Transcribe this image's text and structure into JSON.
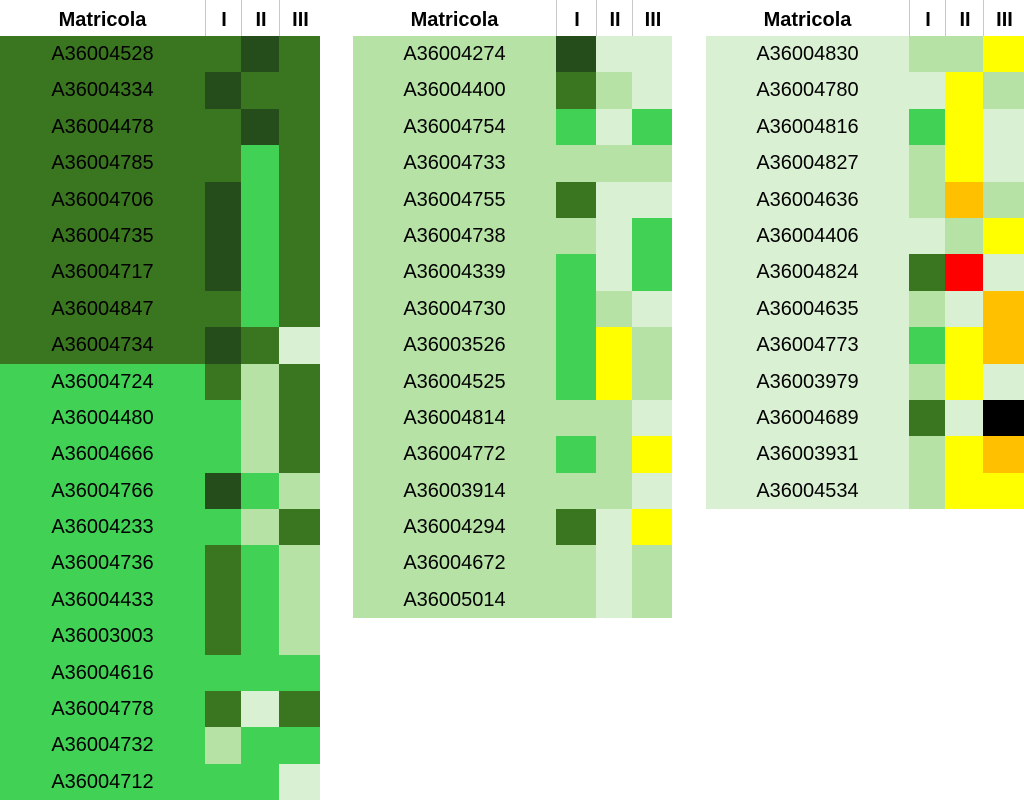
{
  "colors": {
    "D": "#254c1b",
    "M": "#3a7520",
    "G": "#41d155",
    "L": "#b6e3a5",
    "P": "#daf0d3",
    "Y": "#ffff00",
    "O": "#ffc000",
    "R": "#ff0000",
    "K": "#000000"
  },
  "legend_codes": {
    "D": "dark green",
    "M": "medium green",
    "G": "bright green",
    "L": "light green",
    "P": "pale green",
    "Y": "yellow",
    "O": "orange",
    "R": "red",
    "K": "black"
  },
  "tables": [
    {
      "headers": {
        "id": "Matricola",
        "c1": "I",
        "c2": "II",
        "c3": "III"
      },
      "rows": [
        {
          "id": "A36004528",
          "bg": "M",
          "c": [
            "M",
            "D",
            "M"
          ]
        },
        {
          "id": "A36004334",
          "bg": "M",
          "c": [
            "D",
            "M",
            "M"
          ]
        },
        {
          "id": "A36004478",
          "bg": "M",
          "c": [
            "M",
            "D",
            "M"
          ]
        },
        {
          "id": "A36004785",
          "bg": "M",
          "c": [
            "M",
            "G",
            "M"
          ]
        },
        {
          "id": "A36004706",
          "bg": "M",
          "c": [
            "D",
            "G",
            "M"
          ]
        },
        {
          "id": "A36004735",
          "bg": "M",
          "c": [
            "D",
            "G",
            "M"
          ]
        },
        {
          "id": "A36004717",
          "bg": "M",
          "c": [
            "D",
            "G",
            "M"
          ]
        },
        {
          "id": "A36004847",
          "bg": "M",
          "c": [
            "M",
            "G",
            "M"
          ]
        },
        {
          "id": "A36004734",
          "bg": "M",
          "c": [
            "D",
            "M",
            "P"
          ]
        },
        {
          "id": "A36004724",
          "bg": "G",
          "c": [
            "M",
            "L",
            "M"
          ]
        },
        {
          "id": "A36004480",
          "bg": "G",
          "c": [
            "G",
            "L",
            "M"
          ]
        },
        {
          "id": "A36004666",
          "bg": "G",
          "c": [
            "G",
            "L",
            "M"
          ]
        },
        {
          "id": "A36004766",
          "bg": "G",
          "c": [
            "D",
            "G",
            "L"
          ]
        },
        {
          "id": "A36004233",
          "bg": "G",
          "c": [
            "G",
            "L",
            "M"
          ]
        },
        {
          "id": "A36004736",
          "bg": "G",
          "c": [
            "M",
            "G",
            "L"
          ]
        },
        {
          "id": "A36004433",
          "bg": "G",
          "c": [
            "M",
            "G",
            "L"
          ]
        },
        {
          "id": "A36003003",
          "bg": "G",
          "c": [
            "M",
            "G",
            "L"
          ]
        },
        {
          "id": "A36004616",
          "bg": "G",
          "c": [
            "G",
            "G",
            "G"
          ]
        },
        {
          "id": "A36004778",
          "bg": "G",
          "c": [
            "M",
            "P",
            "M"
          ]
        },
        {
          "id": "A36004732",
          "bg": "G",
          "c": [
            "L",
            "G",
            "G"
          ]
        },
        {
          "id": "A36004712",
          "bg": "G",
          "c": [
            "G",
            "G",
            "P"
          ]
        }
      ]
    },
    {
      "headers": {
        "id": "Matricola",
        "c1": "I",
        "c2": "II",
        "c3": "III"
      },
      "rows": [
        {
          "id": "A36004274",
          "bg": "L",
          "c": [
            "D",
            "P",
            "P"
          ]
        },
        {
          "id": "A36004400",
          "bg": "L",
          "c": [
            "M",
            "L",
            "P"
          ]
        },
        {
          "id": "A36004754",
          "bg": "L",
          "c": [
            "G",
            "P",
            "G"
          ]
        },
        {
          "id": "A36004733",
          "bg": "L",
          "c": [
            "L",
            "L",
            "L"
          ]
        },
        {
          "id": "A36004755",
          "bg": "L",
          "c": [
            "M",
            "P",
            "P"
          ]
        },
        {
          "id": "A36004738",
          "bg": "L",
          "c": [
            "L",
            "P",
            "G"
          ]
        },
        {
          "id": "A36004339",
          "bg": "L",
          "c": [
            "G",
            "P",
            "G"
          ]
        },
        {
          "id": "A36004730",
          "bg": "L",
          "c": [
            "G",
            "L",
            "P"
          ]
        },
        {
          "id": "A36003526",
          "bg": "L",
          "c": [
            "G",
            "Y",
            "L"
          ]
        },
        {
          "id": "A36004525",
          "bg": "L",
          "c": [
            "G",
            "Y",
            "L"
          ]
        },
        {
          "id": "A36004814",
          "bg": "L",
          "c": [
            "L",
            "L",
            "P"
          ]
        },
        {
          "id": "A36004772",
          "bg": "L",
          "c": [
            "G",
            "L",
            "Y"
          ]
        },
        {
          "id": "A36003914",
          "bg": "L",
          "c": [
            "L",
            "L",
            "P"
          ]
        },
        {
          "id": "A36004294",
          "bg": "L",
          "c": [
            "M",
            "P",
            "Y"
          ]
        },
        {
          "id": "A36004672",
          "bg": "L",
          "c": [
            "L",
            "P",
            "L"
          ]
        },
        {
          "id": "A36005014",
          "bg": "L",
          "c": [
            "L",
            "P",
            "L"
          ]
        }
      ]
    },
    {
      "headers": {
        "id": "Matricola",
        "c1": "I",
        "c2": "II",
        "c3": "III"
      },
      "rows": [
        {
          "id": "A36004830",
          "bg": "P",
          "c": [
            "L",
            "L",
            "Y"
          ]
        },
        {
          "id": "A36004780",
          "bg": "P",
          "c": [
            "P",
            "Y",
            "L"
          ]
        },
        {
          "id": "A36004816",
          "bg": "P",
          "c": [
            "G",
            "Y",
            "P"
          ]
        },
        {
          "id": "A36004827",
          "bg": "P",
          "c": [
            "L",
            "Y",
            "P"
          ]
        },
        {
          "id": "A36004636",
          "bg": "P",
          "c": [
            "L",
            "O",
            "L"
          ]
        },
        {
          "id": "A36004406",
          "bg": "P",
          "c": [
            "P",
            "L",
            "Y"
          ]
        },
        {
          "id": "A36004824",
          "bg": "P",
          "c": [
            "M",
            "R",
            "P"
          ]
        },
        {
          "id": "A36004635",
          "bg": "P",
          "c": [
            "L",
            "P",
            "O"
          ]
        },
        {
          "id": "A36004773",
          "bg": "P",
          "c": [
            "G",
            "Y",
            "O"
          ]
        },
        {
          "id": "A36003979",
          "bg": "P",
          "c": [
            "L",
            "Y",
            "P"
          ]
        },
        {
          "id": "A36004689",
          "bg": "P",
          "c": [
            "M",
            "P",
            "K"
          ]
        },
        {
          "id": "A36003931",
          "bg": "P",
          "c": [
            "L",
            "Y",
            "O"
          ]
        },
        {
          "id": "A36004534",
          "bg": "P",
          "c": [
            "L",
            "Y",
            "Y"
          ]
        }
      ]
    }
  ]
}
